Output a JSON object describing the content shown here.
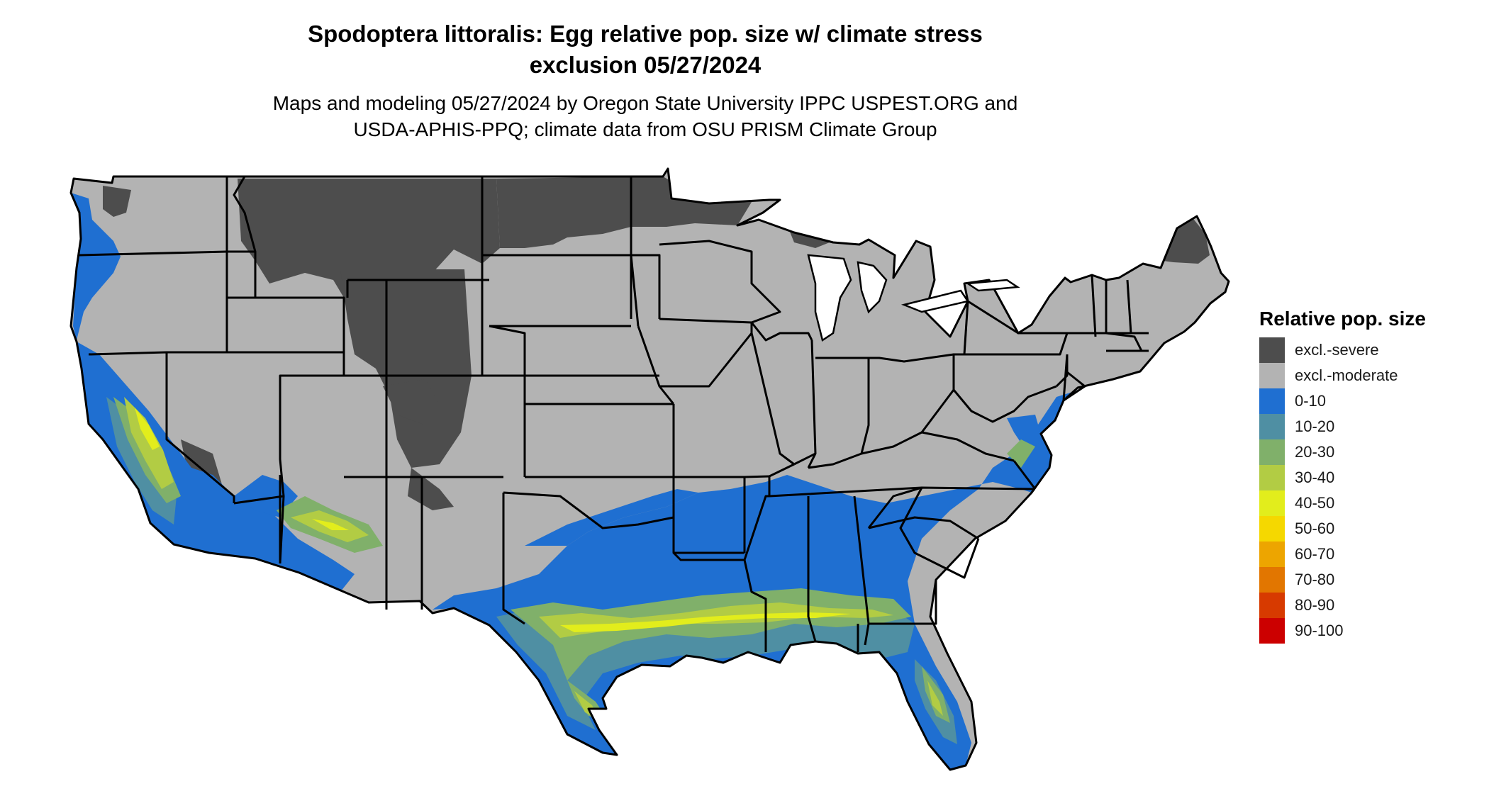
{
  "title": {
    "line1": "Spodoptera littoralis: Egg relative pop. size w/ climate stress",
    "line2": "exclusion 05/27/2024"
  },
  "subtitle": {
    "line1": "Maps and modeling 05/27/2024 by Oregon State University IPPC USPEST.ORG and",
    "line2": "USDA-APHIS-PPQ; climate data from OSU PRISM Climate Group"
  },
  "legend": {
    "title": "Relative pop. size",
    "items": [
      {
        "label": "excl.-severe",
        "color": "#4d4d4d"
      },
      {
        "label": "excl.-moderate",
        "color": "#b3b3b3"
      },
      {
        "label": "0-10",
        "color": "#1f6fd1"
      },
      {
        "label": "10-20",
        "color": "#4f8fa3"
      },
      {
        "label": "20-30",
        "color": "#80b06a"
      },
      {
        "label": "30-40",
        "color": "#b2cc44"
      },
      {
        "label": "40-50",
        "color": "#e2ed1c"
      },
      {
        "label": "50-60",
        "color": "#f5d800"
      },
      {
        "label": "60-70",
        "color": "#eda500"
      },
      {
        "label": "70-80",
        "color": "#e27600"
      },
      {
        "label": "80-90",
        "color": "#d73a00"
      },
      {
        "label": "90-100",
        "color": "#cc0000"
      }
    ]
  },
  "map_colors": {
    "excl_severe": "#4d4d4d",
    "excl_moderate": "#b3b3b3",
    "c0_10": "#1f6fd1",
    "c10_20": "#4f8fa3",
    "c20_30": "#80b06a",
    "c30_40": "#b2cc44",
    "c40_50": "#e2ed1c",
    "border": "#000000"
  }
}
